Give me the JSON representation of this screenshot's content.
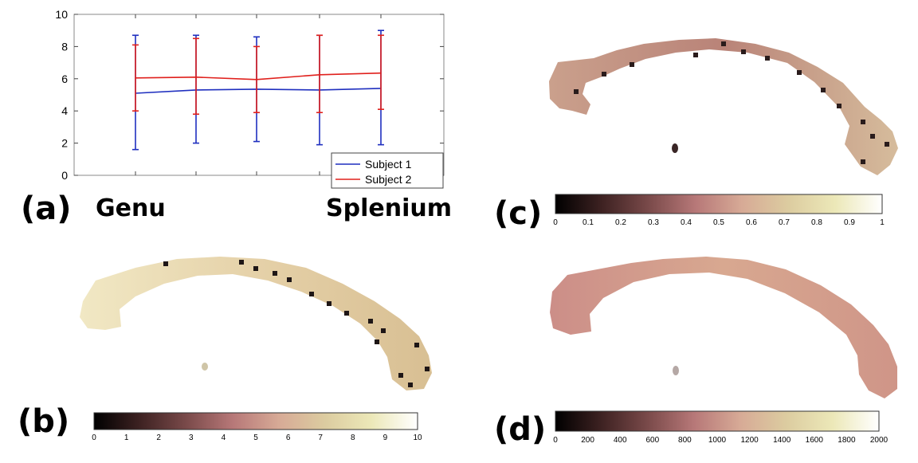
{
  "panel_labels": {
    "a": "(a)",
    "b": "(b)",
    "c": "(c)",
    "d": "(d)"
  },
  "region_labels": {
    "left": "Genu",
    "right": "Splenium"
  },
  "colormap_stops": [
    "#000000",
    "#3e2222",
    "#7a4a4a",
    "#b77878",
    "#d7aa96",
    "#dccca0",
    "#ece8b8",
    "#ffffff"
  ],
  "series_colors": {
    "subject1": "#1f2fbf",
    "subject2": "#e0201c"
  },
  "chart_data": [
    {
      "type": "line",
      "x": [
        1,
        2,
        3,
        4,
        5
      ],
      "ylim": [
        0,
        10
      ],
      "yticks": [
        0,
        2,
        4,
        6,
        8,
        10
      ],
      "grid": false,
      "legend_position": "bottom-right",
      "series": [
        {
          "name": "Subject 1",
          "color": "#1f2fbf",
          "values": [
            5.1,
            5.3,
            5.35,
            5.3,
            5.4
          ],
          "err_low": [
            1.6,
            2.0,
            2.1,
            1.9,
            1.9
          ],
          "err_high": [
            8.7,
            8.7,
            8.6,
            8.7,
            9.0
          ]
        },
        {
          "name": "Subject 2",
          "color": "#e0201c",
          "values": [
            6.05,
            6.1,
            5.95,
            6.25,
            6.35
          ],
          "err_low": [
            4.0,
            3.8,
            3.9,
            3.9,
            4.1
          ],
          "err_high": [
            8.1,
            8.5,
            8.0,
            8.7,
            8.7
          ]
        }
      ]
    },
    {
      "type": "heatmap",
      "panel": "b",
      "range": [
        0,
        10
      ],
      "ticks": [
        "0",
        "1",
        "2",
        "3",
        "4",
        "5",
        "6",
        "7",
        "8",
        "9",
        "10"
      ]
    },
    {
      "type": "heatmap",
      "panel": "c",
      "range": [
        0,
        1
      ],
      "ticks": [
        "0",
        "0.1",
        "0.2",
        "0.3",
        "0.4",
        "0.5",
        "0.6",
        "0.7",
        "0.8",
        "0.9",
        "1"
      ]
    },
    {
      "type": "heatmap",
      "panel": "d",
      "range": [
        0,
        2000
      ],
      "ticks": [
        "0",
        "200",
        "400",
        "600",
        "800",
        "1000",
        "1200",
        "1400",
        "1600",
        "1800",
        "2000"
      ]
    }
  ]
}
